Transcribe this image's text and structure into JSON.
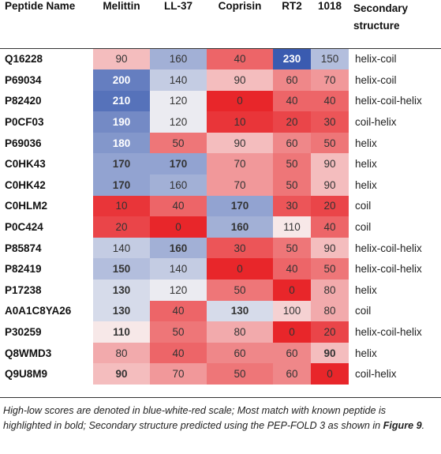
{
  "table": {
    "headers": {
      "name": "Peptide Name",
      "columns": [
        "Melittin",
        "LL-37",
        "Coprisin",
        "RT2",
        "1018"
      ],
      "secondary": "Secondary structure"
    },
    "rows": [
      {
        "name": "Q16228",
        "values": [
          90,
          160,
          40,
          230,
          150
        ],
        "bold": [
          false,
          false,
          false,
          true,
          false
        ],
        "structure": "helix-coil"
      },
      {
        "name": "P69034",
        "values": [
          200,
          140,
          90,
          60,
          70
        ],
        "bold": [
          true,
          false,
          false,
          false,
          false
        ],
        "structure": "helix-coil"
      },
      {
        "name": "P82420",
        "values": [
          210,
          120,
          0,
          40,
          40
        ],
        "bold": [
          true,
          false,
          false,
          false,
          false
        ],
        "structure": "helix-coil-helix"
      },
      {
        "name": "P0CF03",
        "values": [
          190,
          120,
          10,
          20,
          30
        ],
        "bold": [
          true,
          false,
          false,
          false,
          false
        ],
        "structure": "coil-helix"
      },
      {
        "name": "P69036",
        "values": [
          180,
          50,
          90,
          60,
          50
        ],
        "bold": [
          true,
          false,
          false,
          false,
          false
        ],
        "structure": "helix"
      },
      {
        "name": "C0HK43",
        "values": [
          170,
          170,
          70,
          50,
          90
        ],
        "bold": [
          true,
          true,
          false,
          false,
          false
        ],
        "structure": "helix"
      },
      {
        "name": "C0HK42",
        "values": [
          170,
          160,
          70,
          50,
          90
        ],
        "bold": [
          true,
          false,
          false,
          false,
          false
        ],
        "structure": "helix"
      },
      {
        "name": "C0HLM2",
        "values": [
          10,
          40,
          170,
          30,
          20
        ],
        "bold": [
          false,
          false,
          true,
          false,
          false
        ],
        "structure": "coil"
      },
      {
        "name": "P0C424",
        "values": [
          20,
          0,
          160,
          110,
          40
        ],
        "bold": [
          false,
          false,
          true,
          false,
          false
        ],
        "structure": "coil"
      },
      {
        "name": "P85874",
        "values": [
          140,
          160,
          30,
          50,
          90
        ],
        "bold": [
          false,
          true,
          false,
          false,
          false
        ],
        "structure": "helix-coil-helix"
      },
      {
        "name": "P82419",
        "values": [
          150,
          140,
          0,
          40,
          50
        ],
        "bold": [
          true,
          false,
          false,
          false,
          false
        ],
        "structure": "helix-coil-helix"
      },
      {
        "name": "P17238",
        "values": [
          130,
          120,
          50,
          0,
          80
        ],
        "bold": [
          true,
          false,
          false,
          false,
          false
        ],
        "structure": "helix"
      },
      {
        "name": "A0A1C8YA26",
        "values": [
          130,
          40,
          130,
          100,
          80
        ],
        "bold": [
          true,
          false,
          true,
          false,
          false
        ],
        "structure": "coil"
      },
      {
        "name": "P30259",
        "values": [
          110,
          50,
          80,
          0,
          20
        ],
        "bold": [
          true,
          false,
          false,
          false,
          false
        ],
        "structure": "helix-coil-helix"
      },
      {
        "name": "Q8WMD3",
        "values": [
          80,
          40,
          60,
          60,
          90
        ],
        "bold": [
          false,
          false,
          false,
          false,
          true
        ],
        "structure": "helix"
      },
      {
        "name": "Q9U8M9",
        "values": [
          90,
          70,
          50,
          60,
          0
        ],
        "bold": [
          true,
          false,
          false,
          false,
          false
        ],
        "structure": "coil-helix"
      }
    ],
    "colors": {
      "high": "#3a5bb0",
      "mid": "#f8f6f6",
      "low": "#e8262a"
    }
  },
  "caption": {
    "text": "High-low scores are denoted in blue-white-red scale; Most match with known peptide is highlighted in bold; Secondary structure predicted using the PEP-FOLD 3 as shown in ",
    "ref": "Figure 9",
    "end": "."
  }
}
